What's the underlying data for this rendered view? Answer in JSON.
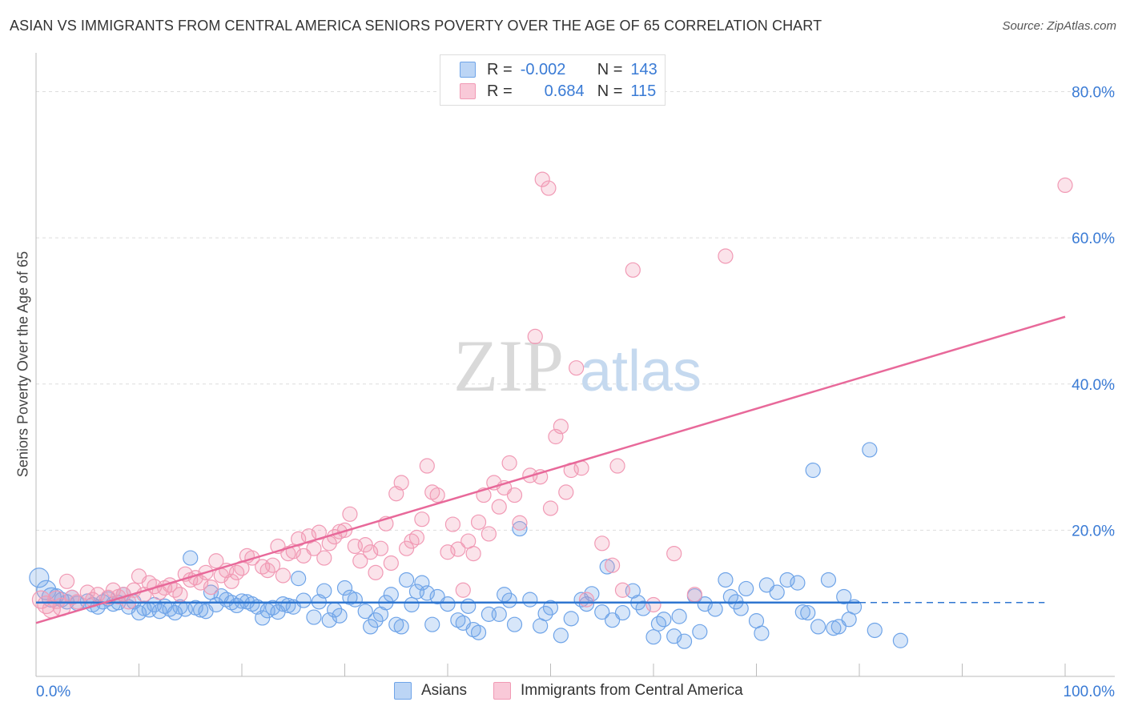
{
  "title": "ASIAN VS IMMIGRANTS FROM CENTRAL AMERICA SENIORS POVERTY OVER THE AGE OF 65 CORRELATION CHART",
  "source": "Source: ZipAtlas.com",
  "watermark": {
    "zip": "ZIP",
    "atlas": "atlas"
  },
  "legend": {
    "rows": [
      {
        "r_label": "R =",
        "r_value": "-0.002",
        "n_label": "N =",
        "n_value": "143"
      },
      {
        "r_label": "R =",
        "r_value": "0.684",
        "n_label": "N =",
        "n_value": "115"
      }
    ]
  },
  "chart_data": {
    "type": "scatter",
    "title": "ASIAN VS IMMIGRANTS FROM CENTRAL AMERICA SENIORS POVERTY OVER THE AGE OF 65 CORRELATION CHART",
    "xlabel": "",
    "ylabel": "Seniors Poverty Over the Age of 65",
    "xlim": [
      0,
      100
    ],
    "ylim": [
      0,
      84
    ],
    "x_tick_labels": [
      "0.0%",
      "100.0%"
    ],
    "y_ticks": [
      20,
      40,
      60,
      80
    ],
    "y_tick_labels": [
      "20.0%",
      "40.0%",
      "60.0%",
      "80.0%"
    ],
    "grid": true,
    "legend_position": "top-center",
    "colors": {
      "asians": "#6fa4e8",
      "central_america": "#f19ab5",
      "asians_line": "#2f76d0",
      "central_america_line": "#e8699a"
    },
    "series": [
      {
        "name": "Asians",
        "trend": {
          "x": [
            0,
            80
          ],
          "y": [
            10.1,
            10.1
          ],
          "dashed_extension_to": 98
        },
        "points": [
          [
            0.3,
            13.5
          ],
          [
            1,
            11.8
          ],
          [
            1.5,
            10.8
          ],
          [
            2,
            11
          ],
          [
            2.5,
            10.5
          ],
          [
            3,
            10.2
          ],
          [
            3.5,
            10.8
          ],
          [
            4,
            10
          ],
          [
            5,
            10.3
          ],
          [
            5.5,
            9.8
          ],
          [
            6,
            9.5
          ],
          [
            6.5,
            10.2
          ],
          [
            7,
            10.6
          ],
          [
            7.5,
            9.9
          ],
          [
            8,
            10.1
          ],
          [
            8.5,
            11.2
          ],
          [
            9,
            9.5
          ],
          [
            9.5,
            10.2
          ],
          [
            10,
            8.7
          ],
          [
            10.5,
            9.3
          ],
          [
            11,
            9.1
          ],
          [
            11.5,
            9.8
          ],
          [
            12,
            8.9
          ],
          [
            12.5,
            9.6
          ],
          [
            13,
            9.2
          ],
          [
            13.5,
            8.7
          ],
          [
            14,
            9.5
          ],
          [
            14.5,
            9.2
          ],
          [
            15,
            16.2
          ],
          [
            15.5,
            9.4
          ],
          [
            16,
            9.1
          ],
          [
            16.5,
            8.9
          ],
          [
            17,
            11.5
          ],
          [
            17.5,
            9.8
          ],
          [
            18,
            11
          ],
          [
            18.5,
            10.5
          ],
          [
            19,
            10.1
          ],
          [
            19.5,
            9.7
          ],
          [
            20,
            10.3
          ],
          [
            20.5,
            10.2
          ],
          [
            21,
            9.9
          ],
          [
            21.5,
            9.5
          ],
          [
            22,
            8
          ],
          [
            22.5,
            9
          ],
          [
            23,
            9.4
          ],
          [
            23.5,
            8.8
          ],
          [
            24,
            9.9
          ],
          [
            24.5,
            9.7
          ],
          [
            25,
            9.5
          ],
          [
            25.5,
            13.4
          ],
          [
            26,
            10.4
          ],
          [
            27,
            8.1
          ],
          [
            27.5,
            10.2
          ],
          [
            28,
            11.7
          ],
          [
            28.5,
            7.7
          ],
          [
            29,
            9.1
          ],
          [
            29.5,
            8.3
          ],
          [
            30,
            12.1
          ],
          [
            30.5,
            10.8
          ],
          [
            31,
            10.5
          ],
          [
            32,
            8.9
          ],
          [
            32.5,
            6.8
          ],
          [
            33,
            7.7
          ],
          [
            33.5,
            8.5
          ],
          [
            34,
            10.1
          ],
          [
            34.5,
            11.2
          ],
          [
            35,
            7.1
          ],
          [
            35.5,
            6.8
          ],
          [
            36,
            13.2
          ],
          [
            36.5,
            9.8
          ],
          [
            37,
            11.6
          ],
          [
            37.5,
            12.8
          ],
          [
            38,
            11.4
          ],
          [
            38.5,
            7.1
          ],
          [
            39,
            10.9
          ],
          [
            40,
            9.9
          ],
          [
            41,
            7.7
          ],
          [
            41.5,
            7.3
          ],
          [
            42,
            9.6
          ],
          [
            42.5,
            6.4
          ],
          [
            43,
            6
          ],
          [
            44,
            8.5
          ],
          [
            45,
            8.5
          ],
          [
            45.5,
            11.2
          ],
          [
            46,
            10.4
          ],
          [
            46.5,
            7.1
          ],
          [
            47,
            20.2
          ],
          [
            48,
            10.5
          ],
          [
            49,
            6.9
          ],
          [
            49.5,
            8.6
          ],
          [
            50,
            9.4
          ],
          [
            51,
            5.6
          ],
          [
            52,
            7.9
          ],
          [
            53,
            10.5
          ],
          [
            53.5,
            9.9
          ],
          [
            54,
            11.3
          ],
          [
            55,
            8.8
          ],
          [
            55.5,
            15
          ],
          [
            56,
            7.7
          ],
          [
            57,
            8.7
          ],
          [
            58,
            11.7
          ],
          [
            58.5,
            10.1
          ],
          [
            59,
            9.3
          ],
          [
            60,
            5.4
          ],
          [
            60.5,
            7.2
          ],
          [
            61,
            7.8
          ],
          [
            62,
            5.5
          ],
          [
            62.5,
            8.2
          ],
          [
            63,
            4.8
          ],
          [
            64,
            11
          ],
          [
            64.5,
            6.1
          ],
          [
            65,
            9.9
          ],
          [
            66,
            9.2
          ],
          [
            67,
            13.2
          ],
          [
            67.5,
            10.9
          ],
          [
            68,
            10.2
          ],
          [
            68.5,
            9.3
          ],
          [
            69,
            12
          ],
          [
            70,
            7.6
          ],
          [
            70.5,
            5.9
          ],
          [
            71,
            12.5
          ],
          [
            72,
            11.5
          ],
          [
            73,
            13.2
          ],
          [
            74,
            12.8
          ],
          [
            74.5,
            8.8
          ],
          [
            75,
            8.7
          ],
          [
            75.5,
            28.2
          ],
          [
            76,
            6.8
          ],
          [
            77,
            13.2
          ],
          [
            77.5,
            6.6
          ],
          [
            78,
            6.8
          ],
          [
            78.5,
            10.9
          ],
          [
            79,
            7.8
          ],
          [
            79.5,
            9.5
          ],
          [
            81,
            31
          ],
          [
            81.5,
            6.3
          ],
          [
            84,
            4.9
          ]
        ]
      },
      {
        "name": "Immigrants from Central America",
        "trend": {
          "x": [
            0,
            100
          ],
          "y": [
            7.3,
            49.2
          ]
        },
        "points": [
          [
            0.5,
            10.5
          ],
          [
            1,
            9.8
          ],
          [
            1.5,
            9.2
          ],
          [
            2,
            10.5
          ],
          [
            2.5,
            9.5
          ],
          [
            3,
            13
          ],
          [
            3.5,
            10.8
          ],
          [
            4,
            10.2
          ],
          [
            5,
            11.5
          ],
          [
            5.5,
            10.5
          ],
          [
            6,
            11.2
          ],
          [
            7,
            10.8
          ],
          [
            7.5,
            11.8
          ],
          [
            8,
            10.9
          ],
          [
            8.5,
            11.2
          ],
          [
            9,
            10.2
          ],
          [
            9.5,
            11.8
          ],
          [
            10,
            13.7
          ],
          [
            10.5,
            11.2
          ],
          [
            11,
            12.8
          ],
          [
            11.5,
            12.3
          ],
          [
            12,
            11.5
          ],
          [
            12.5,
            12.1
          ],
          [
            13,
            12.5
          ],
          [
            13.5,
            11.8
          ],
          [
            14,
            11.2
          ],
          [
            14.5,
            14
          ],
          [
            15,
            13.2
          ],
          [
            15.5,
            13.5
          ],
          [
            16,
            12.8
          ],
          [
            16.5,
            14.2
          ],
          [
            17,
            12.2
          ],
          [
            17.5,
            15.8
          ],
          [
            18,
            13.8
          ],
          [
            18.5,
            14.5
          ],
          [
            19,
            13
          ],
          [
            19.5,
            14.2
          ],
          [
            20,
            14.8
          ],
          [
            20.5,
            16.5
          ],
          [
            21,
            16.2
          ],
          [
            22,
            15
          ],
          [
            22.5,
            14.5
          ],
          [
            23,
            15.2
          ],
          [
            23.5,
            17.8
          ],
          [
            24,
            13.8
          ],
          [
            24.5,
            16.8
          ],
          [
            25,
            17.1
          ],
          [
            25.5,
            18.8
          ],
          [
            26,
            16.5
          ],
          [
            26.5,
            19.2
          ],
          [
            27,
            17.5
          ],
          [
            27.5,
            19.7
          ],
          [
            28,
            16.2
          ],
          [
            28.5,
            18.2
          ],
          [
            29,
            19.1
          ],
          [
            29.5,
            19.8
          ],
          [
            30,
            20
          ],
          [
            30.5,
            22.2
          ],
          [
            31,
            17.8
          ],
          [
            31.5,
            15.8
          ],
          [
            32,
            18
          ],
          [
            32.5,
            17
          ],
          [
            33,
            14.2
          ],
          [
            33.5,
            17.5
          ],
          [
            34,
            20.9
          ],
          [
            34.5,
            15.5
          ],
          [
            35,
            25
          ],
          [
            35.5,
            26.5
          ],
          [
            36,
            17.5
          ],
          [
            36.5,
            18.5
          ],
          [
            37,
            19
          ],
          [
            37.5,
            21.5
          ],
          [
            38,
            28.8
          ],
          [
            38.5,
            25.2
          ],
          [
            39,
            24.8
          ],
          [
            40,
            17
          ],
          [
            40.5,
            20.8
          ],
          [
            41,
            17.4
          ],
          [
            41.5,
            11.8
          ],
          [
            42,
            18.5
          ],
          [
            42.5,
            16.8
          ],
          [
            43,
            21.1
          ],
          [
            43.5,
            24.8
          ],
          [
            44,
            19.5
          ],
          [
            44.5,
            26.5
          ],
          [
            45,
            23.2
          ],
          [
            45.5,
            25.8
          ],
          [
            46,
            29.2
          ],
          [
            46.5,
            24.8
          ],
          [
            47,
            21
          ],
          [
            48,
            27.5
          ],
          [
            48.5,
            46.5
          ],
          [
            49,
            27.3
          ],
          [
            49.2,
            68
          ],
          [
            49.8,
            66.8
          ],
          [
            50,
            23
          ],
          [
            50.5,
            32.8
          ],
          [
            51,
            34.2
          ],
          [
            51.5,
            25.2
          ],
          [
            52,
            28.2
          ],
          [
            52.5,
            42.2
          ],
          [
            53,
            28.5
          ],
          [
            53.5,
            10.5
          ],
          [
            55,
            18.2
          ],
          [
            56,
            15.2
          ],
          [
            56.5,
            28.8
          ],
          [
            57,
            11.8
          ],
          [
            58,
            55.6
          ],
          [
            60,
            9.8
          ],
          [
            62,
            16.8
          ],
          [
            64,
            11.2
          ],
          [
            67,
            57.5
          ],
          [
            100,
            67.2
          ]
        ]
      }
    ]
  },
  "bottom_legend": [
    {
      "label": "Asians"
    },
    {
      "label": "Immigrants from Central America"
    }
  ]
}
